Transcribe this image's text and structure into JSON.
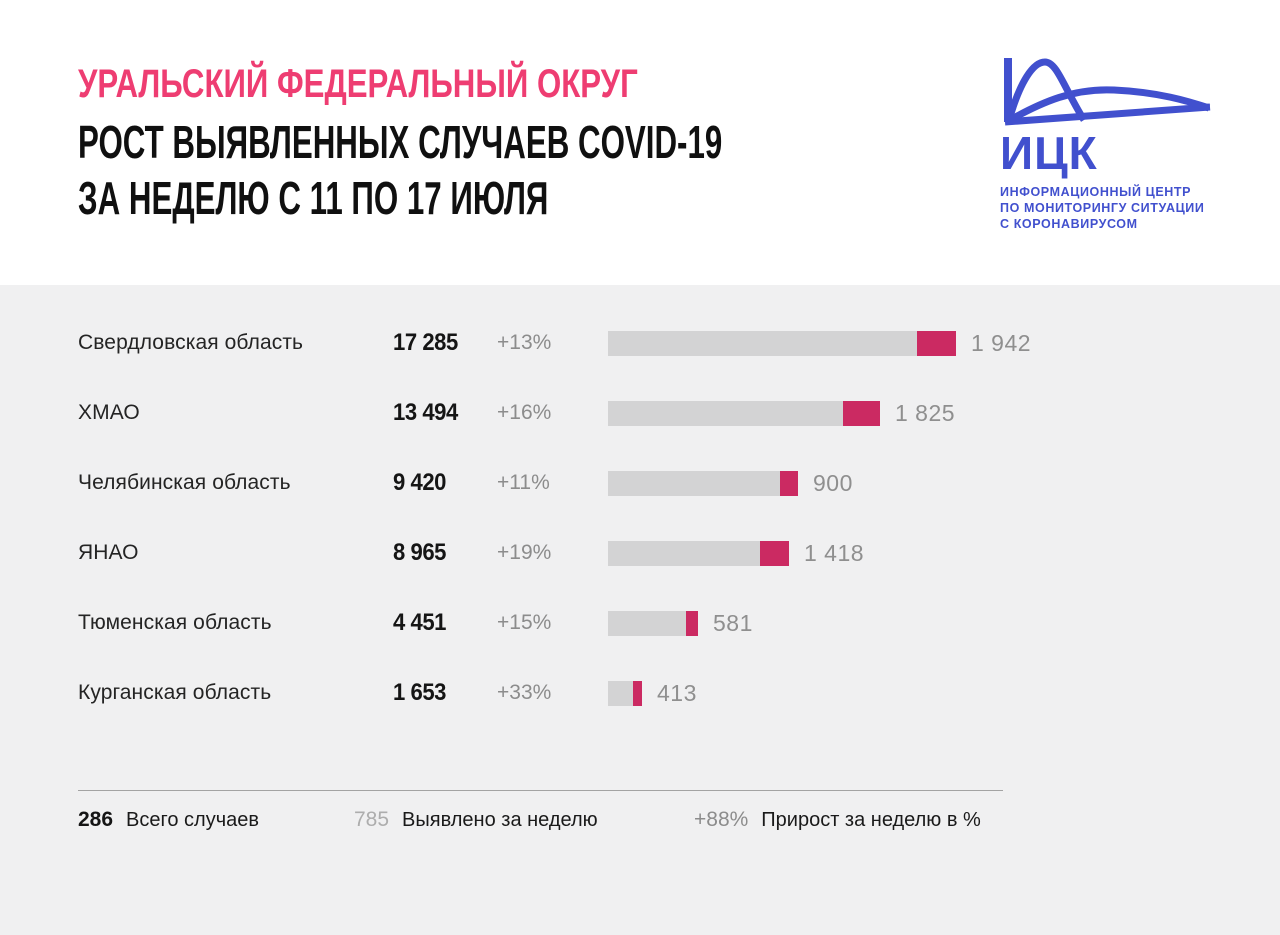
{
  "header": {
    "title_accent": "УРАЛЬСКИЙ ФЕДЕРАЛЬНЫЙ ОКРУГ",
    "title_line2": "РОСТ ВЫЯВЛЕННЫХ СЛУЧАЕВ COVID-19",
    "title_line3": "ЗА НЕДЕЛЮ С 11 ПО 17 ИЮЛЯ"
  },
  "logo": {
    "abbr": "ИЦК",
    "line1": "ИНФОРМАЦИОННЫЙ ЦЕНТР",
    "line2": "ПО МОНИТОРИНГУ СИТУАЦИИ",
    "line3": "С КОРОНАВИРУСОМ"
  },
  "colors": {
    "accent_pink": "#EE3D72",
    "bar_pink": "#CB2A62",
    "bar_gray": "#D3D3D4",
    "panel_bg": "#F0F0F1",
    "logo_blue": "#4150CE",
    "muted_text": "#8C8C8C",
    "light_muted_text": "#ADADAD",
    "dark_text": "#151515"
  },
  "chart_data": {
    "type": "bar",
    "title": "Уральский федеральный округ — рост выявленных случаев COVID-19 за неделю с 11 по 17 июля",
    "categories": [
      "Свердловская область",
      "ХМАО",
      "Челябинская область",
      "ЯНАО",
      "Тюменская область",
      "Курганская область"
    ],
    "series": [
      {
        "name": "Всего случаев",
        "values": [
          17285,
          13494,
          9420,
          8965,
          4451,
          1653
        ]
      },
      {
        "name": "Выявлено за неделю",
        "values": [
          1942,
          1825,
          900,
          1418,
          581,
          413
        ]
      },
      {
        "name": "Прирост за неделю в %",
        "values": [
          13,
          16,
          11,
          19,
          15,
          33
        ]
      }
    ],
    "orientation": "horizontal",
    "bar_style": "total bar length proportional to total cases; pink tail segment = cases detected during the week",
    "value_labels": "weekly cases shown right of each bar",
    "xlim": [
      0,
      17285
    ],
    "grid": false,
    "legend_position": "bottom"
  },
  "rows": [
    {
      "region": "Свердловская область",
      "total": "17 285",
      "pct": "+13%",
      "weekly": "1 942",
      "total_num": 17285,
      "weekly_num": 1942
    },
    {
      "region": "ХМАО",
      "total": "13 494",
      "pct": "+16%",
      "weekly": "1 825",
      "total_num": 13494,
      "weekly_num": 1825
    },
    {
      "region": "Челябинская область",
      "total": "9 420",
      "pct": "+11%",
      "weekly": "900",
      "total_num": 9420,
      "weekly_num": 900
    },
    {
      "region": "ЯНАО",
      "total": "8 965",
      "pct": "+19%",
      "weekly": "1 418",
      "total_num": 8965,
      "weekly_num": 1418
    },
    {
      "region": "Тюменская область",
      "total": "4 451",
      "pct": "+15%",
      "weekly": "581",
      "total_num": 4451,
      "weekly_num": 581
    },
    {
      "region": "Курганская область",
      "total": "1 653",
      "pct": "+33%",
      "weekly": "413",
      "total_num": 1653,
      "weekly_num": 413
    }
  ],
  "legend": {
    "total_value": "286",
    "total_label": "Всего случаев",
    "weekly_value": "785",
    "weekly_label": "Выявлено за неделю",
    "pct_value": "+88%",
    "pct_label": "Прирост за неделю в %"
  }
}
